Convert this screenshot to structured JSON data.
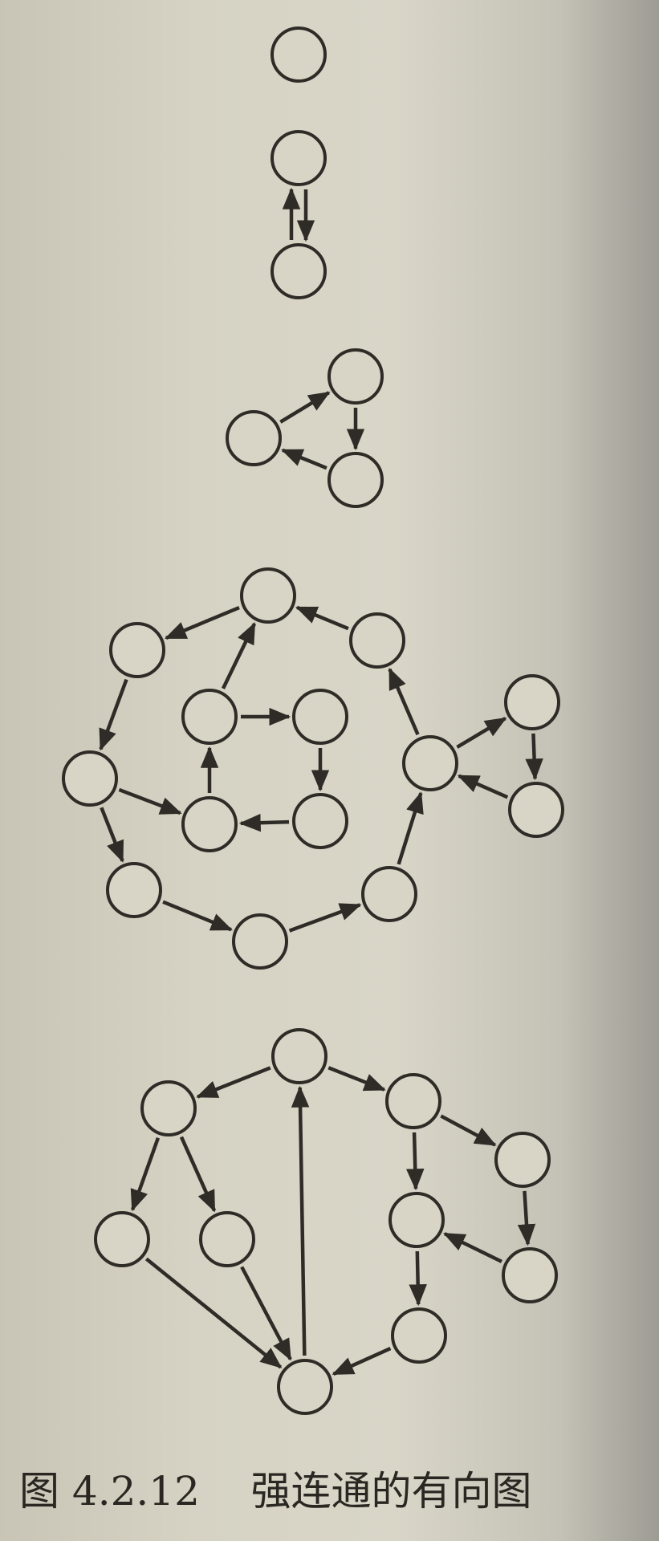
{
  "figure": {
    "caption": "图 4.2.12    强连通的有向图"
  },
  "colors": {
    "ink": "#2f2b27",
    "paper": "#d8d5c6"
  },
  "graphs": [
    {
      "id": "g1",
      "name": "single-vertex",
      "nodes": [
        "a"
      ],
      "edges": []
    },
    {
      "id": "g2",
      "name": "two-vertex-cycle",
      "nodes": [
        "a",
        "b"
      ],
      "edges": [
        [
          "a",
          "b"
        ],
        [
          "b",
          "a"
        ]
      ]
    },
    {
      "id": "g3",
      "name": "three-vertex-cycle",
      "nodes": [
        "a",
        "b",
        "c"
      ],
      "edges": [
        [
          "a",
          "b"
        ],
        [
          "b",
          "c"
        ],
        [
          "c",
          "a"
        ]
      ]
    },
    {
      "id": "g4",
      "name": "large-strongly-connected",
      "nodes": [
        "top",
        "ur",
        "ul",
        "il",
        "ir",
        "left",
        "ibl",
        "ibr",
        "right",
        "bl",
        "bottom",
        "br",
        "tu",
        "td"
      ],
      "edges": [
        [
          "top",
          "ul"
        ],
        [
          "ur",
          "top"
        ],
        [
          "ul",
          "left"
        ],
        [
          "left",
          "bl"
        ],
        [
          "left",
          "ibl"
        ],
        [
          "bl",
          "bottom"
        ],
        [
          "bottom",
          "br"
        ],
        [
          "br",
          "right"
        ],
        [
          "right",
          "ur"
        ],
        [
          "right",
          "tu"
        ],
        [
          "tu",
          "td"
        ],
        [
          "td",
          "right"
        ],
        [
          "il",
          "top"
        ],
        [
          "il",
          "ir"
        ],
        [
          "ir",
          "ibr"
        ],
        [
          "ibr",
          "ibl"
        ],
        [
          "ibl",
          "il"
        ]
      ]
    },
    {
      "id": "g5",
      "name": "tree-like-strongly-connected",
      "nodes": [
        "top",
        "l",
        "ll",
        "lr",
        "bottom",
        "r",
        "rr",
        "rm",
        "rrb",
        "rb"
      ],
      "edges": [
        [
          "top",
          "l"
        ],
        [
          "l",
          "ll"
        ],
        [
          "l",
          "lr"
        ],
        [
          "ll",
          "bottom"
        ],
        [
          "lr",
          "bottom"
        ],
        [
          "bottom",
          "top"
        ],
        [
          "top",
          "r"
        ],
        [
          "r",
          "rr"
        ],
        [
          "r",
          "rm"
        ],
        [
          "rr",
          "rrb"
        ],
        [
          "rrb",
          "rm"
        ],
        [
          "rm",
          "rb"
        ],
        [
          "rb",
          "bottom"
        ]
      ]
    }
  ]
}
